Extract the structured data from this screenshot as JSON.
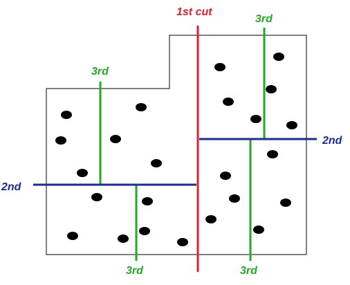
{
  "labels": {
    "first_cut": "1st cut",
    "second_left": "2nd",
    "second_right": "2nd",
    "third_top_left": "3rd",
    "third_top_right": "3rd",
    "third_bottom_left": "3rd",
    "third_bottom_right": "3rd"
  },
  "colors": {
    "first_cut": "#e0202e",
    "second_cut": "#1a2a9a",
    "third_cut": "#22aa22",
    "outline": "#000000",
    "points": "#000000"
  }
}
